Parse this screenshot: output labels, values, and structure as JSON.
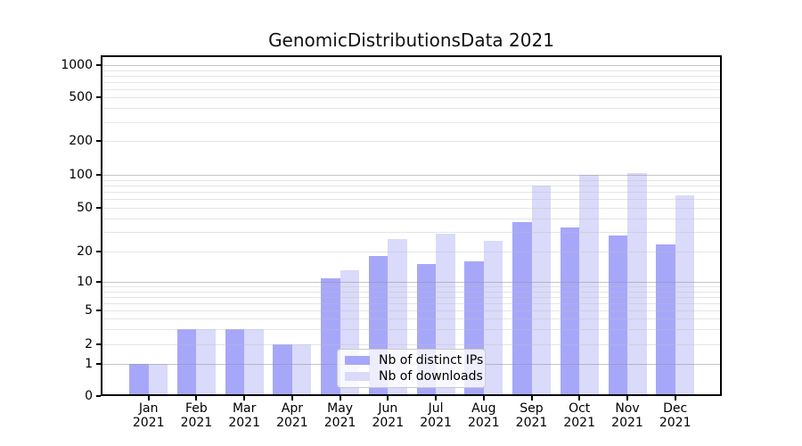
{
  "chart_data": {
    "type": "bar",
    "title": "GenomicDistributionsData 2021",
    "categories": [
      "Jan",
      "Feb",
      "Mar",
      "Apr",
      "May",
      "Jun",
      "Jul",
      "Aug",
      "Sep",
      "Oct",
      "Nov",
      "Dec"
    ],
    "category_year": "2021",
    "series": [
      {
        "name": "Nb of distinct IPs",
        "color": "#a7a7fa",
        "values": [
          1,
          3,
          3,
          2,
          11,
          18,
          15,
          16,
          37,
          33,
          28,
          23
        ]
      },
      {
        "name": "Nb of downloads",
        "color": "#dadafa",
        "values": [
          1,
          3,
          3,
          2,
          13,
          26,
          29,
          25,
          80,
          101,
          103,
          65
        ]
      }
    ],
    "xlabel": "",
    "ylabel": "",
    "yscale": "symlog",
    "y_ticks": [
      0,
      1,
      2,
      5,
      10,
      20,
      50,
      100,
      200,
      500,
      1000
    ],
    "y_major_gridlines": [
      1,
      10,
      100,
      1000
    ],
    "y_minor_gridlines": [
      2,
      3,
      4,
      5,
      6,
      7,
      8,
      9,
      20,
      30,
      40,
      50,
      60,
      70,
      80,
      90,
      200,
      300,
      400,
      500,
      600,
      700,
      800,
      900
    ],
    "ylim": [
      0,
      1500
    ],
    "grid": "horizontal",
    "legend_position": "lower center",
    "colors": {
      "bar_dark": "#a7a7fa",
      "bar_light": "#dadafa",
      "axis": "#000000",
      "grid_major": "#c6c6c6",
      "grid_minor": "#e4e4e4"
    }
  }
}
